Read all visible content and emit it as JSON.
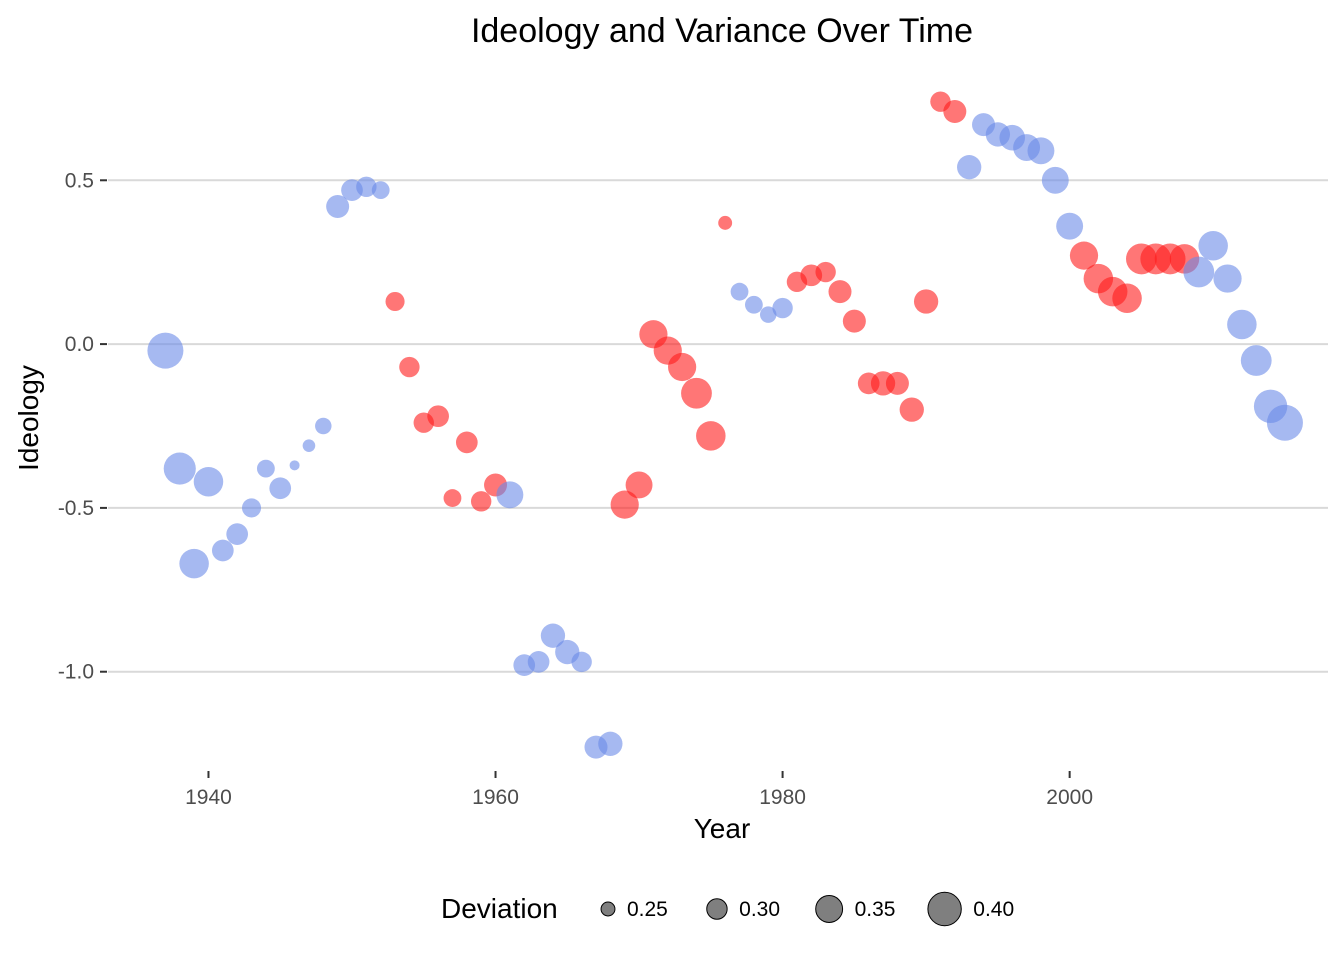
{
  "chart_data": {
    "type": "scatter",
    "title": "Ideology and Variance Over Time",
    "xlabel": "Year",
    "ylabel": "Ideology",
    "xlim": [
      1933,
      2018
    ],
    "ylim": [
      -1.3,
      0.8
    ],
    "x_ticks": [
      1940,
      1960,
      1980,
      2000
    ],
    "x_tick_labels": [
      "1940",
      "1960",
      "1980",
      "2000"
    ],
    "y_ticks": [
      -1.0,
      -0.5,
      0.0,
      0.5
    ],
    "y_tick_labels": [
      "-1.0",
      "-0.5",
      "0.0",
      "0.5"
    ],
    "grid": true,
    "legend": {
      "title": "Deviation",
      "position": "bottom",
      "entries": [
        {
          "value": 0.25,
          "label": "0.25"
        },
        {
          "value": 0.3,
          "label": "0.30"
        },
        {
          "value": 0.35,
          "label": "0.35"
        },
        {
          "value": 0.4,
          "label": "0.40"
        }
      ]
    },
    "colors": {
      "blue": "#6a8be8",
      "red": "#ff1a1a"
    },
    "opacity": 0.6,
    "points": [
      {
        "x": 1937,
        "y": -0.02,
        "size": 0.42,
        "color": "blue"
      },
      {
        "x": 1938,
        "y": -0.38,
        "size": 0.39,
        "color": "blue"
      },
      {
        "x": 1939,
        "y": -0.67,
        "size": 0.37,
        "color": "blue"
      },
      {
        "x": 1940,
        "y": -0.42,
        "size": 0.37,
        "color": "blue"
      },
      {
        "x": 1941,
        "y": -0.63,
        "size": 0.31,
        "color": "blue"
      },
      {
        "x": 1942,
        "y": -0.58,
        "size": 0.31,
        "color": "blue"
      },
      {
        "x": 1943,
        "y": -0.5,
        "size": 0.29,
        "color": "blue"
      },
      {
        "x": 1944,
        "y": -0.38,
        "size": 0.28,
        "color": "blue"
      },
      {
        "x": 1945,
        "y": -0.44,
        "size": 0.31,
        "color": "blue"
      },
      {
        "x": 1946,
        "y": -0.37,
        "size": 0.22,
        "color": "blue"
      },
      {
        "x": 1947,
        "y": -0.31,
        "size": 0.24,
        "color": "blue"
      },
      {
        "x": 1948,
        "y": -0.25,
        "size": 0.27,
        "color": "blue"
      },
      {
        "x": 1949,
        "y": 0.42,
        "size": 0.32,
        "color": "blue"
      },
      {
        "x": 1950,
        "y": 0.47,
        "size": 0.31,
        "color": "blue"
      },
      {
        "x": 1951,
        "y": 0.48,
        "size": 0.3,
        "color": "blue"
      },
      {
        "x": 1952,
        "y": 0.47,
        "size": 0.28,
        "color": "blue"
      },
      {
        "x": 1953,
        "y": 0.13,
        "size": 0.29,
        "color": "red"
      },
      {
        "x": 1954,
        "y": -0.07,
        "size": 0.3,
        "color": "red"
      },
      {
        "x": 1955,
        "y": -0.24,
        "size": 0.3,
        "color": "red"
      },
      {
        "x": 1956,
        "y": -0.22,
        "size": 0.31,
        "color": "red"
      },
      {
        "x": 1957,
        "y": -0.47,
        "size": 0.28,
        "color": "red"
      },
      {
        "x": 1958,
        "y": -0.3,
        "size": 0.31,
        "color": "red"
      },
      {
        "x": 1959,
        "y": -0.48,
        "size": 0.3,
        "color": "red"
      },
      {
        "x": 1960,
        "y": -0.43,
        "size": 0.32,
        "color": "red"
      },
      {
        "x": 1961,
        "y": -0.46,
        "size": 0.35,
        "color": "blue"
      },
      {
        "x": 1962,
        "y": -0.98,
        "size": 0.31,
        "color": "blue"
      },
      {
        "x": 1963,
        "y": -0.97,
        "size": 0.31,
        "color": "blue"
      },
      {
        "x": 1964,
        "y": -0.89,
        "size": 0.33,
        "color": "blue"
      },
      {
        "x": 1965,
        "y": -0.94,
        "size": 0.33,
        "color": "blue"
      },
      {
        "x": 1966,
        "y": -0.97,
        "size": 0.3,
        "color": "blue"
      },
      {
        "x": 1967,
        "y": -1.23,
        "size": 0.32,
        "color": "blue"
      },
      {
        "x": 1968,
        "y": -1.22,
        "size": 0.33,
        "color": "blue"
      },
      {
        "x": 1969,
        "y": -0.49,
        "size": 0.36,
        "color": "red"
      },
      {
        "x": 1970,
        "y": -0.43,
        "size": 0.35,
        "color": "red"
      },
      {
        "x": 1971,
        "y": 0.03,
        "size": 0.36,
        "color": "red"
      },
      {
        "x": 1972,
        "y": -0.02,
        "size": 0.36,
        "color": "red"
      },
      {
        "x": 1973,
        "y": -0.07,
        "size": 0.36,
        "color": "red"
      },
      {
        "x": 1974,
        "y": -0.15,
        "size": 0.38,
        "color": "red"
      },
      {
        "x": 1975,
        "y": -0.28,
        "size": 0.37,
        "color": "red"
      },
      {
        "x": 1976,
        "y": 0.37,
        "size": 0.25,
        "color": "red"
      },
      {
        "x": 1977,
        "y": 0.16,
        "size": 0.28,
        "color": "blue"
      },
      {
        "x": 1978,
        "y": 0.12,
        "size": 0.28,
        "color": "blue"
      },
      {
        "x": 1979,
        "y": 0.09,
        "size": 0.27,
        "color": "blue"
      },
      {
        "x": 1980,
        "y": 0.11,
        "size": 0.3,
        "color": "blue"
      },
      {
        "x": 1981,
        "y": 0.19,
        "size": 0.3,
        "color": "red"
      },
      {
        "x": 1982,
        "y": 0.21,
        "size": 0.31,
        "color": "red"
      },
      {
        "x": 1983,
        "y": 0.22,
        "size": 0.3,
        "color": "red"
      },
      {
        "x": 1984,
        "y": 0.16,
        "size": 0.32,
        "color": "red"
      },
      {
        "x": 1985,
        "y": 0.07,
        "size": 0.32,
        "color": "red"
      },
      {
        "x": 1986,
        "y": -0.12,
        "size": 0.31,
        "color": "red"
      },
      {
        "x": 1987,
        "y": -0.12,
        "size": 0.33,
        "color": "red"
      },
      {
        "x": 1988,
        "y": -0.12,
        "size": 0.32,
        "color": "red"
      },
      {
        "x": 1989,
        "y": -0.2,
        "size": 0.33,
        "color": "red"
      },
      {
        "x": 1990,
        "y": 0.13,
        "size": 0.33,
        "color": "red"
      },
      {
        "x": 1991,
        "y": 0.74,
        "size": 0.3,
        "color": "red"
      },
      {
        "x": 1992,
        "y": 0.71,
        "size": 0.32,
        "color": "red"
      },
      {
        "x": 1993,
        "y": 0.54,
        "size": 0.33,
        "color": "blue"
      },
      {
        "x": 1994,
        "y": 0.67,
        "size": 0.32,
        "color": "blue"
      },
      {
        "x": 1995,
        "y": 0.64,
        "size": 0.33,
        "color": "blue"
      },
      {
        "x": 1996,
        "y": 0.63,
        "size": 0.34,
        "color": "blue"
      },
      {
        "x": 1997,
        "y": 0.6,
        "size": 0.35,
        "color": "blue"
      },
      {
        "x": 1998,
        "y": 0.59,
        "size": 0.35,
        "color": "blue"
      },
      {
        "x": 1999,
        "y": 0.5,
        "size": 0.35,
        "color": "blue"
      },
      {
        "x": 2000,
        "y": 0.36,
        "size": 0.35,
        "color": "blue"
      },
      {
        "x": 2001,
        "y": 0.27,
        "size": 0.36,
        "color": "red"
      },
      {
        "x": 2002,
        "y": 0.2,
        "size": 0.37,
        "color": "red"
      },
      {
        "x": 2003,
        "y": 0.16,
        "size": 0.37,
        "color": "red"
      },
      {
        "x": 2004,
        "y": 0.14,
        "size": 0.37,
        "color": "red"
      },
      {
        "x": 2005,
        "y": 0.26,
        "size": 0.38,
        "color": "red"
      },
      {
        "x": 2006,
        "y": 0.26,
        "size": 0.38,
        "color": "red"
      },
      {
        "x": 2007,
        "y": 0.26,
        "size": 0.38,
        "color": "red"
      },
      {
        "x": 2008,
        "y": 0.26,
        "size": 0.37,
        "color": "red"
      },
      {
        "x": 2009,
        "y": 0.22,
        "size": 0.38,
        "color": "blue"
      },
      {
        "x": 2010,
        "y": 0.3,
        "size": 0.37,
        "color": "blue"
      },
      {
        "x": 2011,
        "y": 0.2,
        "size": 0.36,
        "color": "blue"
      },
      {
        "x": 2012,
        "y": 0.06,
        "size": 0.37,
        "color": "blue"
      },
      {
        "x": 2013,
        "y": -0.05,
        "size": 0.38,
        "color": "blue"
      },
      {
        "x": 2014,
        "y": -0.19,
        "size": 0.4,
        "color": "blue"
      },
      {
        "x": 2015,
        "y": -0.24,
        "size": 0.42,
        "color": "blue"
      }
    ]
  }
}
